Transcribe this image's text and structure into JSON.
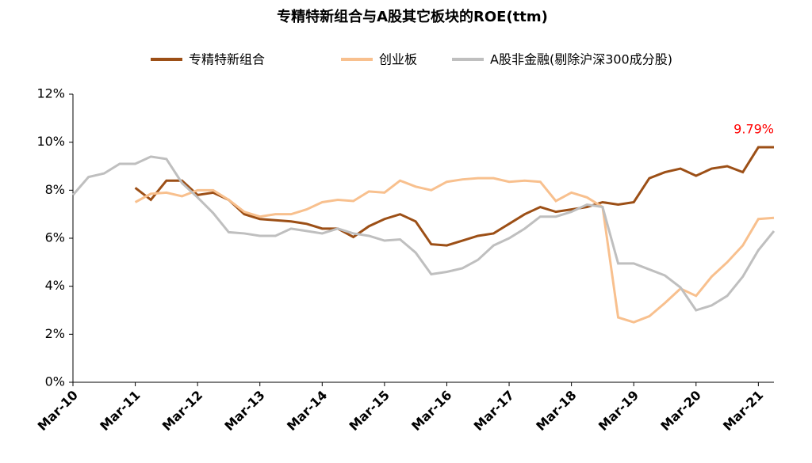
{
  "chart_data": {
    "type": "line",
    "title": "专精特新组合与A股其它板块的ROE(ttm)",
    "categories": [
      "Mar-10",
      null,
      null,
      null,
      "Mar-11",
      null,
      null,
      null,
      "Mar-12",
      null,
      null,
      null,
      "Mar-13",
      null,
      null,
      null,
      "Mar-14",
      null,
      null,
      null,
      "Mar-15",
      null,
      null,
      null,
      "Mar-16",
      null,
      null,
      null,
      "Mar-17",
      null,
      null,
      null,
      "Mar-18",
      null,
      null,
      null,
      "Mar-19",
      null,
      null,
      null,
      "Mar-20",
      null,
      null,
      null,
      "Mar-21",
      null
    ],
    "series": [
      {
        "name": "专精特新组合",
        "color": "#9c4f16",
        "values": [
          null,
          null,
          null,
          null,
          8.1,
          7.6,
          8.4,
          8.4,
          7.8,
          7.9,
          7.6,
          7.0,
          6.8,
          6.75,
          6.7,
          6.6,
          6.4,
          6.4,
          6.05,
          6.5,
          6.8,
          7.0,
          6.7,
          5.75,
          5.7,
          5.9,
          6.1,
          6.2,
          6.6,
          7.0,
          7.3,
          7.1,
          7.2,
          7.3,
          7.5,
          7.4,
          7.5,
          8.5,
          8.75,
          8.9,
          8.6,
          8.9,
          9.0,
          8.75,
          9.79,
          9.79
        ],
        "value_labels": [
          null,
          null,
          null,
          null,
          null,
          null,
          null,
          null,
          null,
          null,
          null,
          null,
          null,
          null,
          null,
          null,
          null,
          null,
          null,
          null,
          null,
          null,
          null,
          null,
          null,
          null,
          null,
          null,
          null,
          null,
          null,
          null,
          null,
          null,
          null,
          null,
          null,
          null,
          null,
          null,
          null,
          null,
          null,
          null,
          null,
          "9.79%"
        ],
        "value_label_color": "#ff0000"
      },
      {
        "name": "创业板",
        "color": "#f8c08e",
        "values": [
          null,
          null,
          null,
          null,
          7.5,
          7.85,
          7.9,
          7.75,
          8.0,
          8.0,
          7.6,
          7.1,
          6.9,
          7.0,
          7.0,
          7.2,
          7.5,
          7.6,
          7.55,
          7.95,
          7.9,
          8.4,
          8.15,
          8.0,
          8.35,
          8.45,
          8.5,
          8.5,
          8.35,
          8.4,
          8.35,
          7.55,
          7.9,
          7.7,
          7.3,
          2.7,
          2.5,
          2.75,
          3.3,
          3.9,
          3.6,
          4.4,
          5.0,
          5.7,
          6.8,
          6.85
        ]
      },
      {
        "name": "A股非金融(剔除沪深300成分股)",
        "color": "#bfbfbf",
        "values": [
          7.8,
          8.55,
          8.7,
          9.1,
          9.1,
          9.4,
          9.3,
          8.3,
          7.7,
          7.05,
          6.25,
          6.2,
          6.1,
          6.1,
          6.4,
          6.3,
          6.2,
          6.4,
          6.2,
          6.1,
          5.9,
          5.95,
          5.4,
          4.5,
          4.6,
          4.75,
          5.1,
          5.7,
          6.0,
          6.4,
          6.9,
          6.9,
          7.1,
          7.4,
          7.3,
          4.95,
          4.95,
          4.7,
          4.45,
          3.95,
          3.0,
          3.2,
          3.6,
          4.4,
          5.5,
          6.3
        ]
      }
    ],
    "ylim": [
      0,
      12
    ],
    "yticks": [
      {
        "value": 0,
        "label": "0%"
      },
      {
        "value": 2,
        "label": "2%"
      },
      {
        "value": 4,
        "label": "4%"
      },
      {
        "value": 6,
        "label": "6%"
      },
      {
        "value": 8,
        "label": "8%"
      },
      {
        "value": 10,
        "label": "10%"
      },
      {
        "value": 12,
        "label": "12%"
      }
    ],
    "grid": false,
    "legend": "top"
  }
}
